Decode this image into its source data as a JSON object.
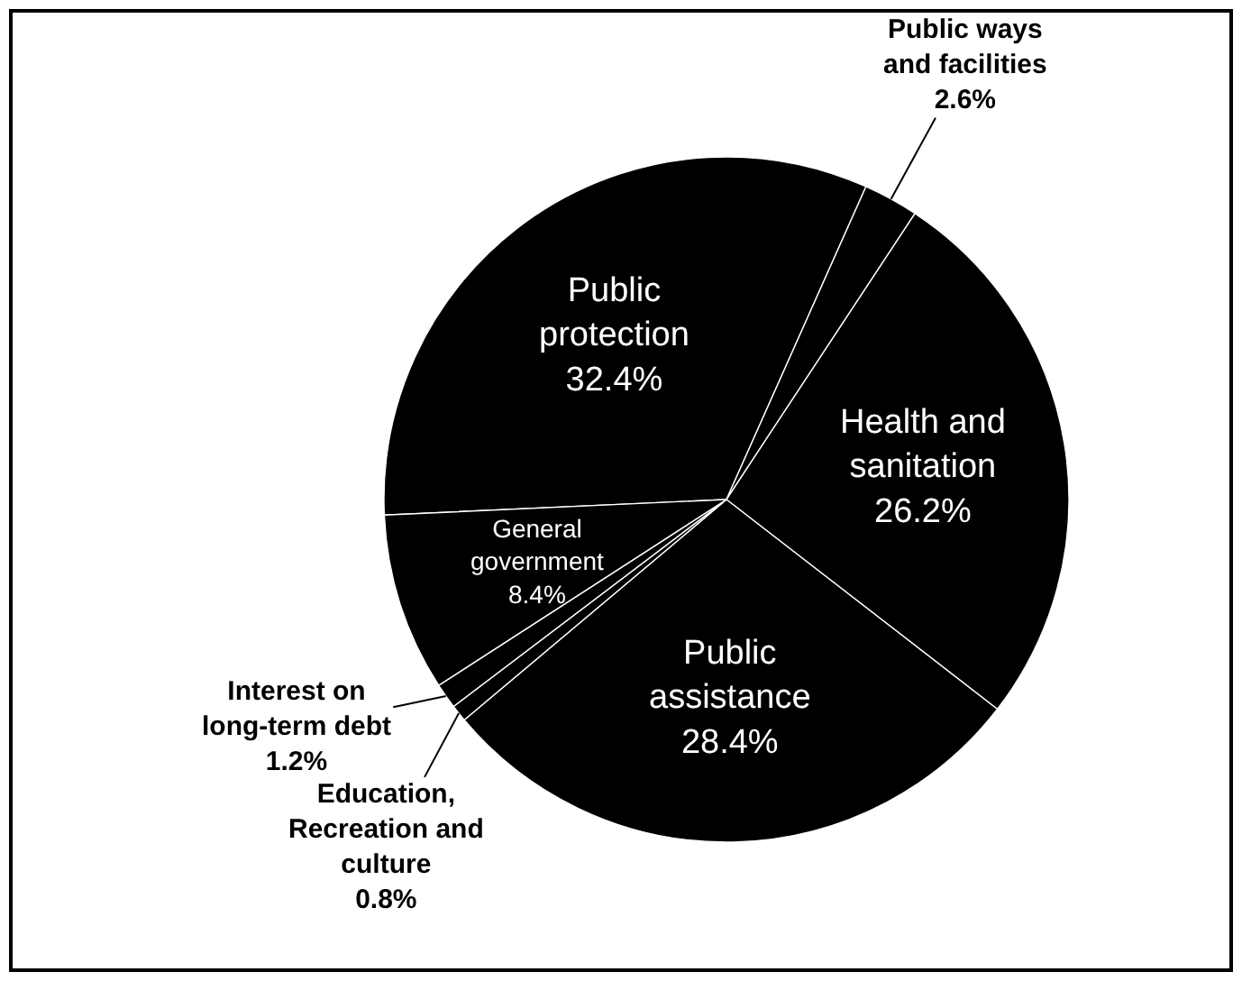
{
  "chart_data": {
    "type": "pie",
    "categories": [
      "Public protection",
      "Public ways and facilities",
      "Health and sanitation",
      "Public assistance",
      "Education, Recreation and culture",
      "Interest on long-term debt",
      "General government"
    ],
    "values": [
      32.4,
      2.6,
      26.2,
      28.4,
      0.8,
      1.2,
      8.4
    ],
    "value_labels": [
      "32.4%",
      "2.6%",
      "26.2%",
      "28.4%",
      "0.8%",
      "1.2%",
      "8.4%"
    ],
    "colors": [
      "#000000",
      "#000000",
      "#000000",
      "#000000",
      "#000000",
      "#000000",
      "#000000"
    ],
    "legend": false
  }
}
